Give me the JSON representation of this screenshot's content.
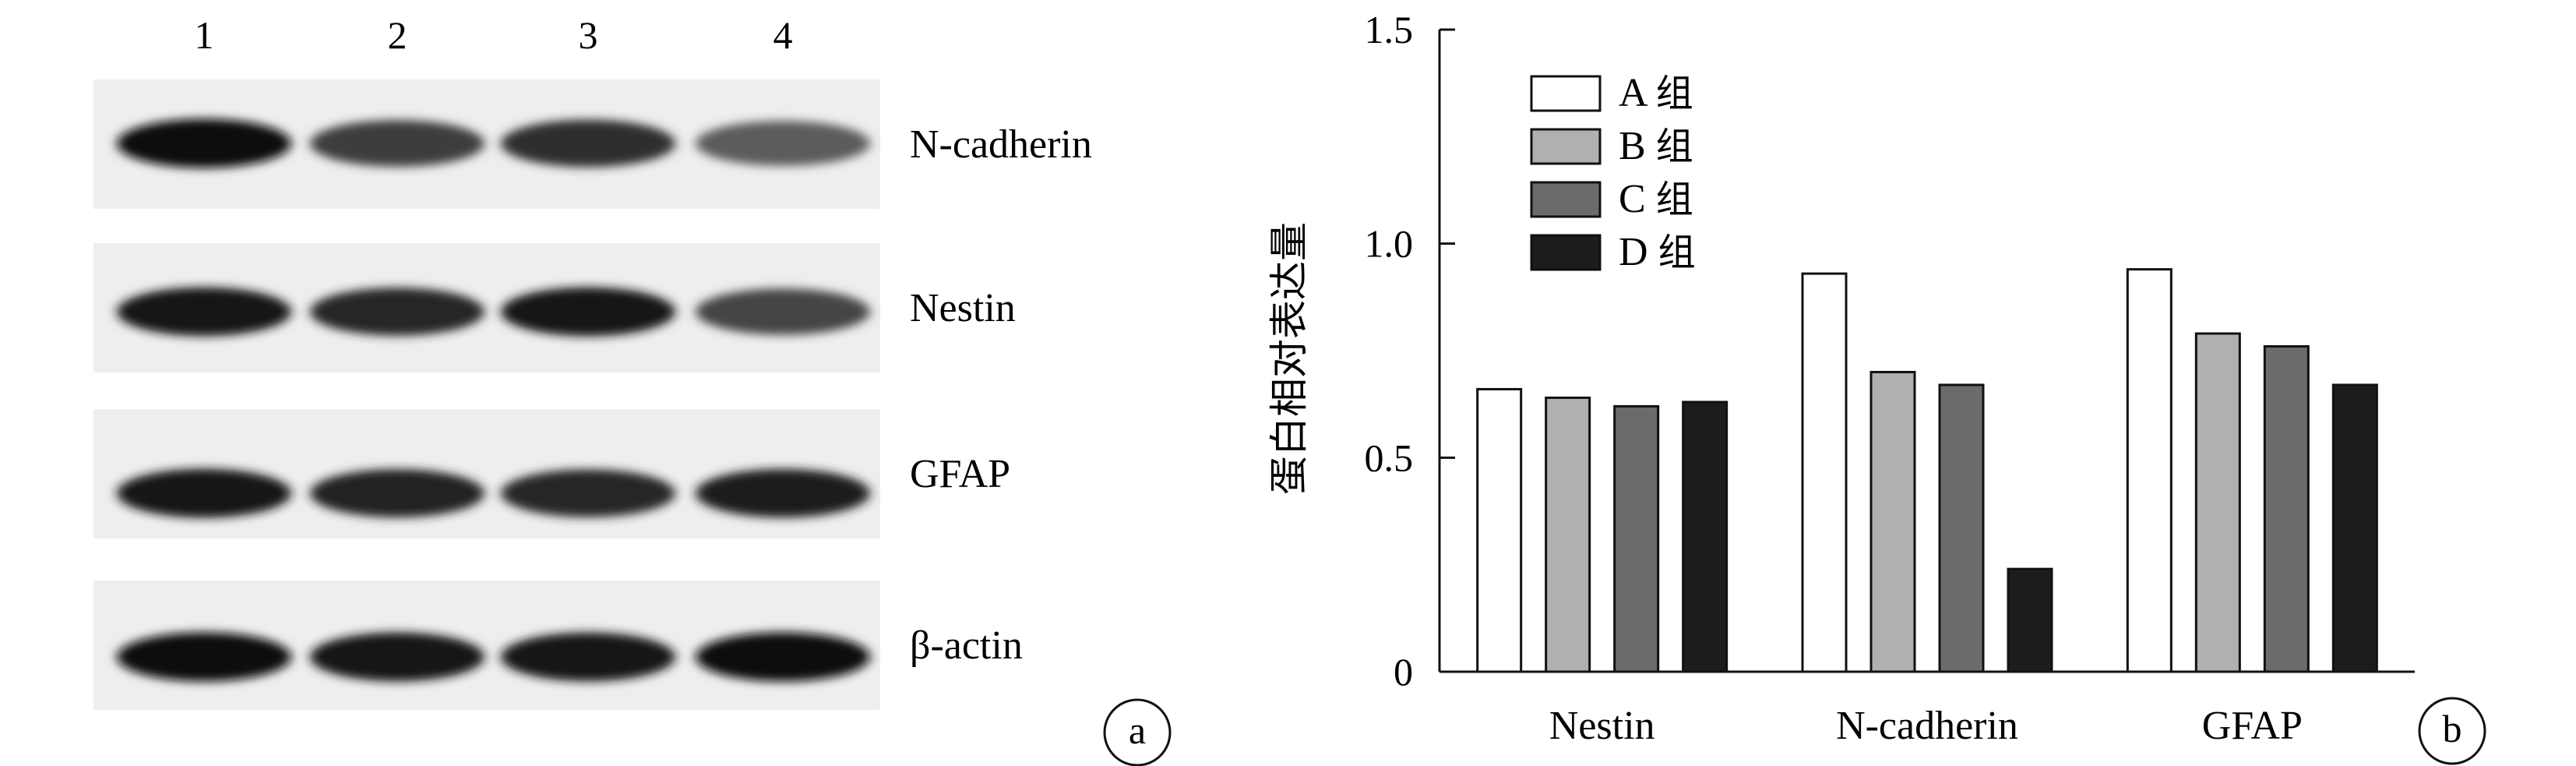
{
  "panel_a": {
    "badge": "a",
    "lanes": [
      "1",
      "2",
      "3",
      "4"
    ],
    "rows": [
      {
        "label": "N-cadherin",
        "band_darkness": [
          0.95,
          0.75,
          0.82,
          0.62
        ]
      },
      {
        "label": "Nestin",
        "band_darkness": [
          0.92,
          0.86,
          0.94,
          0.72
        ]
      },
      {
        "label": "GFAP",
        "band_darkness": [
          0.93,
          0.88,
          0.85,
          0.9
        ]
      },
      {
        "label": "β-actin",
        "band_darkness": [
          0.95,
          0.93,
          0.92,
          0.95
        ]
      }
    ],
    "colors": {
      "blot_bg": "#eeeeee",
      "band": "#0b0b0b"
    }
  },
  "panel_b": {
    "badge": "b"
  },
  "chart_data": {
    "type": "bar",
    "categories": [
      "Nestin",
      "N-cadherin",
      "GFAP"
    ],
    "series": [
      {
        "name": "A 组",
        "color": "#ffffff",
        "values": [
          0.66,
          0.93,
          0.94
        ]
      },
      {
        "name": "B 组",
        "color": "#b0b0b0",
        "values": [
          0.64,
          0.7,
          0.79
        ]
      },
      {
        "name": "C 组",
        "color": "#6b6b6b",
        "values": [
          0.62,
          0.67,
          0.76
        ]
      },
      {
        "name": "D 组",
        "color": "#1c1c1c",
        "values": [
          0.63,
          0.24,
          0.67
        ]
      }
    ],
    "ylabel": "蛋白相对表达量",
    "xlabel": "",
    "ylim": [
      0,
      1.5
    ],
    "yticks": [
      {
        "value": 0,
        "label": "0"
      },
      {
        "value": 0.5,
        "label": "0.5"
      },
      {
        "value": 1.0,
        "label": "1.0"
      },
      {
        "value": 1.5,
        "label": "1.5"
      }
    ],
    "legend_position": "top-left",
    "grid": false
  }
}
